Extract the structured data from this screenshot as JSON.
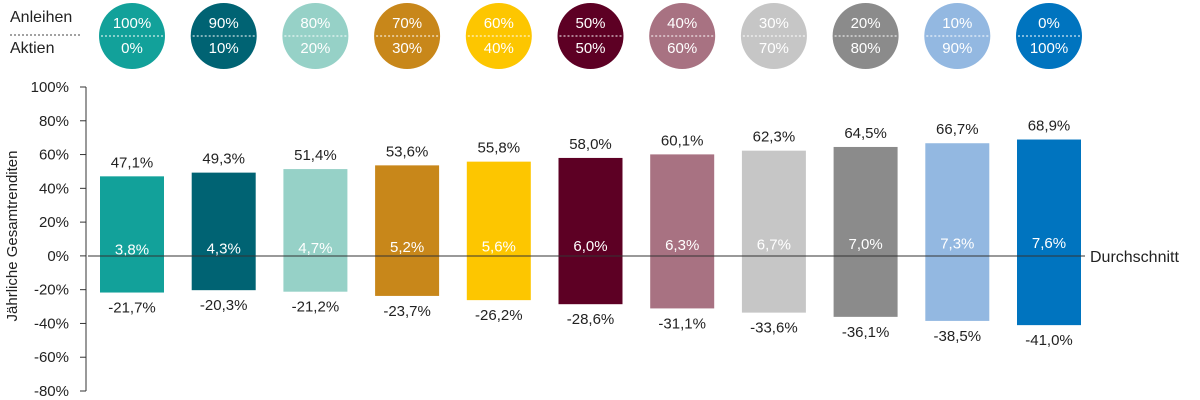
{
  "legend": {
    "row1_label": "Anleihen",
    "row2_label": "Aktien"
  },
  "chart_data": {
    "type": "bar",
    "ylabel": "Jährliche Gesamtrenditen",
    "ylim": [
      -80,
      100
    ],
    "yticks": [
      100,
      80,
      60,
      40,
      20,
      0,
      -20,
      -40,
      -60,
      -80
    ],
    "ytick_labels": [
      "100%",
      "80%",
      "60%",
      "40%",
      "20%",
      "0%",
      "-20%",
      "-40%",
      "-60%",
      "-80%"
    ],
    "zero_line_label": "Durchschnitt",
    "categories": [
      {
        "bonds": "100%",
        "stocks": "0%",
        "color": "#12a19a",
        "max": 47.1,
        "min": -21.7,
        "avg": 3.8,
        "max_label": "47,1%",
        "min_label": "-21,7%",
        "avg_label": "3,8%"
      },
      {
        "bonds": "90%",
        "stocks": "10%",
        "color": "#006373",
        "max": 49.3,
        "min": -20.3,
        "avg": 4.3,
        "max_label": "49,3%",
        "min_label": "-20,3%",
        "avg_label": "4,3%"
      },
      {
        "bonds": "80%",
        "stocks": "20%",
        "color": "#96d1c7",
        "max": 51.4,
        "min": -21.2,
        "avg": 4.7,
        "max_label": "51,4%",
        "min_label": "-21,2%",
        "avg_label": "4,7%"
      },
      {
        "bonds": "70%",
        "stocks": "30%",
        "color": "#c8871a",
        "max": 53.6,
        "min": -23.7,
        "avg": 5.2,
        "max_label": "53,6%",
        "min_label": "-23,7%",
        "avg_label": "5,2%"
      },
      {
        "bonds": "60%",
        "stocks": "40%",
        "color": "#fdc600",
        "max": 55.8,
        "min": -26.2,
        "avg": 5.6,
        "max_label": "55,8%",
        "min_label": "-26,2%",
        "avg_label": "5,6%"
      },
      {
        "bonds": "50%",
        "stocks": "50%",
        "color": "#5d0024",
        "max": 58.0,
        "min": -28.6,
        "avg": 6.0,
        "max_label": "58,0%",
        "min_label": "-28,6%",
        "avg_label": "6,0%"
      },
      {
        "bonds": "40%",
        "stocks": "60%",
        "color": "#a87282",
        "max": 60.1,
        "min": -31.1,
        "avg": 6.3,
        "max_label": "60,1%",
        "min_label": "-31,1%",
        "avg_label": "6,3%"
      },
      {
        "bonds": "30%",
        "stocks": "70%",
        "color": "#c6c6c6",
        "max": 62.3,
        "min": -33.6,
        "avg": 6.7,
        "max_label": "62,3%",
        "min_label": "-33,6%",
        "avg_label": "6,7%"
      },
      {
        "bonds": "20%",
        "stocks": "80%",
        "color": "#8b8b8b",
        "max": 64.5,
        "min": -36.1,
        "avg": 7.0,
        "max_label": "64,5%",
        "min_label": "-36,1%",
        "avg_label": "7,0%"
      },
      {
        "bonds": "10%",
        "stocks": "90%",
        "color": "#93b8e1",
        "max": 66.7,
        "min": -38.5,
        "avg": 7.3,
        "max_label": "66,7%",
        "min_label": "-38,5%",
        "avg_label": "7,3%"
      },
      {
        "bonds": "0%",
        "stocks": "100%",
        "color": "#0074bf",
        "max": 68.9,
        "min": -41.0,
        "avg": 7.6,
        "max_label": "68,9%",
        "min_label": "-41,0%",
        "avg_label": "7,6%"
      }
    ]
  }
}
